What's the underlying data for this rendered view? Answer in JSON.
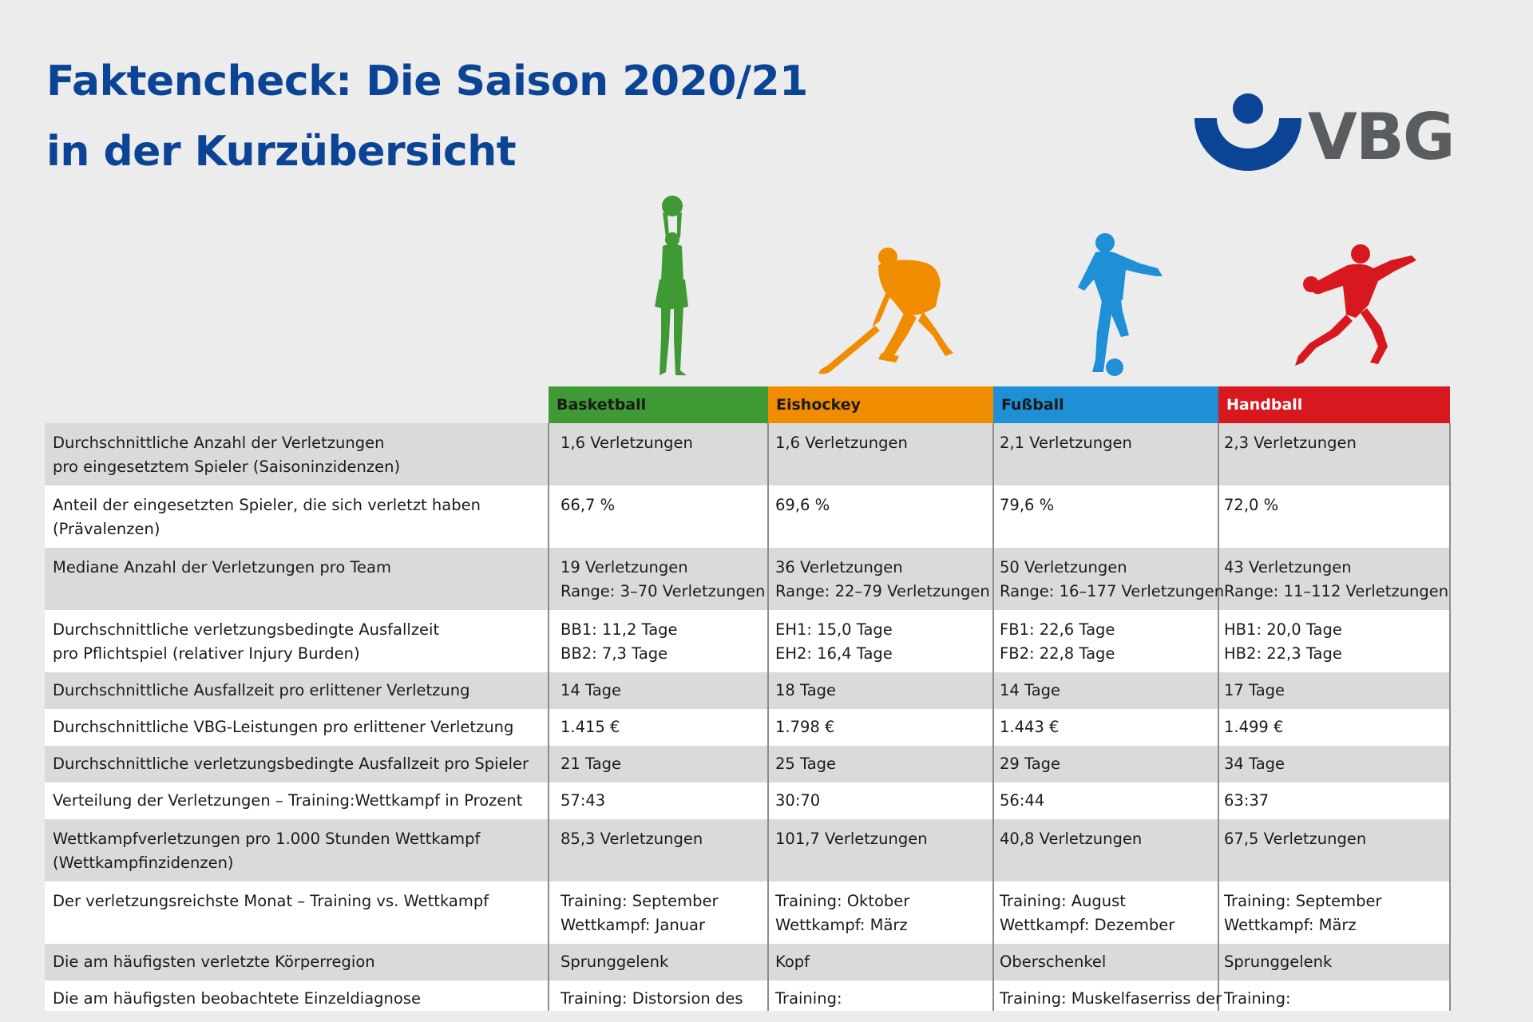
{
  "title": {
    "line1": "Faktencheck: Die Saison 2020/21",
    "line2": "in der Kurzübersicht"
  },
  "logo": {
    "text": "VBG",
    "icon": "vbg-logo-icon",
    "color": "#0b4494",
    "text_color": "#5a5d60"
  },
  "sports": [
    {
      "name": "Basketball",
      "color": "#3f9a35",
      "icon": "basketball-player-icon"
    },
    {
      "name": "Eishockey",
      "color": "#f08c00",
      "icon": "ice-hockey-player-icon"
    },
    {
      "name": "Fußball",
      "color": "#1f8fd6",
      "icon": "football-player-icon"
    },
    {
      "name": "Handball",
      "color": "#d7191f",
      "icon": "handball-player-icon"
    }
  ],
  "rows": [
    {
      "label": [
        "Durchschnittliche Anzahl der Verletzungen",
        "pro eingesetztem Spieler (Saisoninzidenzen)"
      ],
      "values": [
        [
          "1,6 Verletzungen"
        ],
        [
          "1,6 Verletzungen"
        ],
        [
          "2,1 Verletzungen"
        ],
        [
          "2,3 Verletzungen"
        ]
      ]
    },
    {
      "label": [
        "Anteil der eingesetzten Spieler, die sich verletzt haben",
        "(Prävalenzen)"
      ],
      "values": [
        [
          "66,7 %"
        ],
        [
          "69,6 %"
        ],
        [
          "79,6 %"
        ],
        [
          "72,0 %"
        ]
      ]
    },
    {
      "label": [
        "Mediane Anzahl der Verletzungen pro Team"
      ],
      "values": [
        [
          "19 Verletzungen",
          "Range: 3–70 Verletzungen"
        ],
        [
          "36 Verletzungen",
          "Range: 22–79 Verletzungen"
        ],
        [
          "50 Verletzungen",
          "Range: 16–177 Verletzungen"
        ],
        [
          "43 Verletzungen",
          "Range: 11–112 Verletzungen"
        ]
      ]
    },
    {
      "label": [
        "Durchschnittliche verletzungsbedingte Ausfallzeit",
        "pro Pflichtspiel (relativer Injury Burden)"
      ],
      "values": [
        [
          "BB1: 11,2 Tage",
          "BB2: 7,3 Tage"
        ],
        [
          "EH1: 15,0 Tage",
          "EH2: 16,4 Tage"
        ],
        [
          "FB1: 22,6 Tage",
          "FB2: 22,8 Tage"
        ],
        [
          "HB1: 20,0 Tage",
          "HB2: 22,3 Tage"
        ]
      ]
    },
    {
      "label": [
        "Durchschnittliche Ausfallzeit pro erlittener Verletzung"
      ],
      "values": [
        [
          "14 Tage"
        ],
        [
          "18 Tage"
        ],
        [
          "14 Tage"
        ],
        [
          "17 Tage"
        ]
      ]
    },
    {
      "label": [
        "Durchschnittliche VBG-Leistungen pro erlittener Verletzung"
      ],
      "values": [
        [
          "1.415 €"
        ],
        [
          "1.798 €"
        ],
        [
          "1.443 €"
        ],
        [
          "1.499 €"
        ]
      ]
    },
    {
      "label": [
        "Durchschnittliche verletzungsbedingte Ausfallzeit pro Spieler"
      ],
      "values": [
        [
          "21 Tage"
        ],
        [
          "25 Tage"
        ],
        [
          "29 Tage"
        ],
        [
          "34 Tage"
        ]
      ]
    },
    {
      "label": [
        "Verteilung der Verletzungen – Training:Wettkampf in Prozent"
      ],
      "values": [
        [
          "57:43"
        ],
        [
          "30:70"
        ],
        [
          "56:44"
        ],
        [
          "63:37"
        ]
      ]
    },
    {
      "label": [
        "Wettkampfverletzungen pro 1.000 Stunden Wettkampf",
        "(Wettkampfinzidenzen)"
      ],
      "values": [
        [
          "85,3 Verletzungen"
        ],
        [
          "101,7 Verletzungen"
        ],
        [
          "40,8 Verletzungen"
        ],
        [
          "67,5 Verletzungen"
        ]
      ]
    },
    {
      "label": [
        "Der verletzungsreichste Monat – Training vs. Wettkampf"
      ],
      "values": [
        [
          "Training: September",
          "Wettkampf: Januar"
        ],
        [
          "Training: Oktober",
          "Wettkampf: März"
        ],
        [
          "Training: August",
          "Wettkampf: Dezember"
        ],
        [
          "Training: September",
          "Wettkampf: März"
        ]
      ]
    },
    {
      "label": [
        "Die am häufigsten verletzte Körperregion"
      ],
      "values": [
        [
          "Sprunggelenk"
        ],
        [
          "Kopf"
        ],
        [
          "Oberschenkel"
        ],
        [
          "Sprunggelenk"
        ]
      ]
    },
    {
      "label": [
        "Die am häufigsten beobachtete Einzeldiagnose"
      ],
      "values": [
        [
          "Training: Distorsion des"
        ],
        [
          "Training:"
        ],
        [
          "Training: Muskelfaserriss der"
        ],
        [
          "Training:"
        ]
      ]
    }
  ]
}
